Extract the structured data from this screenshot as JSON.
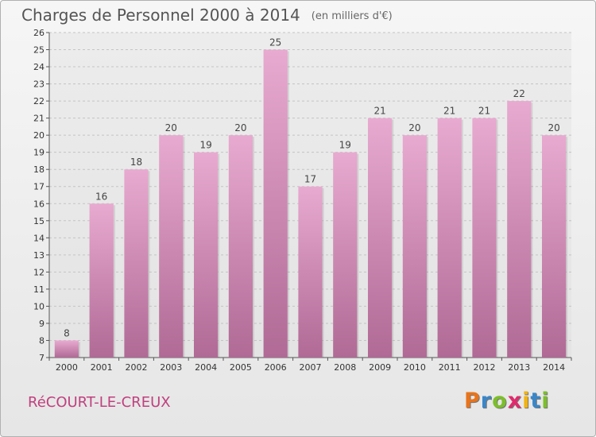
{
  "title": "Charges de Personnel 2000 à 2014",
  "subtitle": "(en milliers d'€)",
  "commune": "RéCOURT-LE-CREUX",
  "brand": {
    "letters": [
      "P",
      "r",
      "o",
      "x",
      "i",
      "t",
      "i"
    ],
    "colors": [
      "#e8741c",
      "#3a86c8",
      "#7cbf2a",
      "#e02a6b",
      "#f2b312",
      "#3a86c8",
      "#7cbf2a"
    ]
  },
  "colors": {
    "bar_top": "#e8aad0",
    "bar_bottom": "#b06a95",
    "title": "#555555",
    "commune": "#c0407e"
  },
  "chart_data": {
    "type": "bar",
    "categories": [
      "2000",
      "2001",
      "2002",
      "2003",
      "2004",
      "2005",
      "2006",
      "2007",
      "2008",
      "2009",
      "2010",
      "2011",
      "2012",
      "2013",
      "2014"
    ],
    "values": [
      8,
      16,
      18,
      20,
      19,
      20,
      25,
      17,
      19,
      21,
      20,
      21,
      21,
      22,
      20
    ],
    "title": "Charges de Personnel 2000 à 2014",
    "unit": "(en milliers d'€)",
    "xlabel": "",
    "ylabel": "",
    "ylim": [
      7,
      26
    ],
    "yticks": [
      7,
      8,
      9,
      10,
      11,
      12,
      13,
      14,
      15,
      16,
      17,
      18,
      19,
      20,
      21,
      22,
      23,
      24,
      25,
      26
    ],
    "grid": "horizontal dashed",
    "legend": "none"
  }
}
